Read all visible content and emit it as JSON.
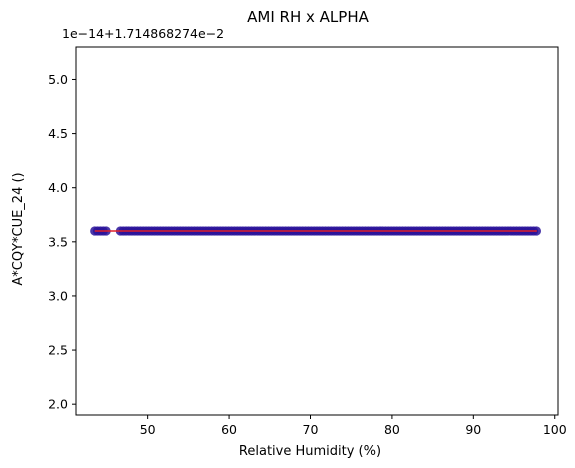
{
  "chart_data": {
    "type": "scatter",
    "title": "AMI RH x ALPHA",
    "xlabel": "Relative Humidity (%)",
    "ylabel": "A*CQY*CUE_24 ()",
    "y_offset_label": "1e−14+1.714868274e−2",
    "xlim": [
      41.2,
      100.4
    ],
    "ylim": [
      1.9,
      5.3
    ],
    "x_ticks": [
      50,
      60,
      70,
      80,
      90,
      100
    ],
    "x_tick_labels": [
      "50",
      "60",
      "70",
      "80",
      "90",
      "100"
    ],
    "y_ticks": [
      2.0,
      2.5,
      3.0,
      3.5,
      4.0,
      4.5,
      5.0
    ],
    "y_tick_labels": [
      "2.0",
      "2.5",
      "3.0",
      "3.5",
      "4.0",
      "4.5",
      "5.0"
    ],
    "grid": false,
    "series": [
      {
        "type": "scatter",
        "color": "#2a139a",
        "x_range": [
          43.5,
          97.8
        ],
        "y": 3.6,
        "gap_x": [
          45.2,
          46.6
        ]
      },
      {
        "type": "line",
        "color": "#e0202a",
        "x": [
          43.5,
          97.8
        ],
        "y": [
          3.6,
          3.6
        ]
      }
    ]
  }
}
